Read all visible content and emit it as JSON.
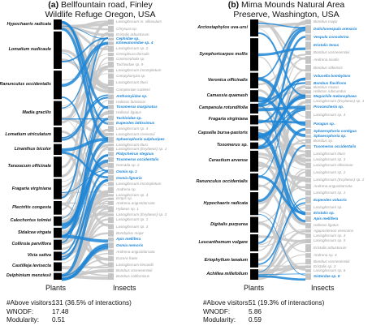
{
  "panel_a": {
    "letter": "(a)",
    "title_line1": "Bellfountain road, Finley",
    "title_line2": "Wildlife Refuge Oregon, USA",
    "plants": [
      "Hypochaeris radicata",
      "Lomatium nudicaule",
      "Ranunculus occidentalis",
      "Madia gracilis",
      "Lomatium utriculatum",
      "Linanthus bicolor",
      "Taraxacum officinale",
      "Fragaria virginiana",
      "Plectritis congesta",
      "Calochortus tolmiei",
      "Sidalcea virgata",
      "Collinsia parviflora",
      "Vicia sativa",
      "Castilleja levisecta",
      "Delphinium menziesii"
    ],
    "insects": [
      {
        "name": "Lasioglossum nr. villosulum",
        "hl": false
      },
      {
        "name": "Chrysura sp.",
        "hl": false
      },
      {
        "name": "Eristalis arbustorum",
        "hl": false
      },
      {
        "name": "Cephidae sp.",
        "hl": true
      },
      {
        "name": "Ichneumonidae sp. 4",
        "hl": true
      },
      {
        "name": "Lasioglossum sp. 2",
        "hl": false
      },
      {
        "name": "Cenopleura dorsalis",
        "hl": false
      },
      {
        "name": "Coniocephala sp.",
        "hl": false
      },
      {
        "name": "Tachinidae sp. 9",
        "hl": false
      },
      {
        "name": "Lasioglossum incompletum",
        "hl": false
      },
      {
        "name": "Campylomyza sp.",
        "hl": false
      },
      {
        "name": "Lasioglossum titusi",
        "hl": false
      },
      {
        "name": "Comptoniae sackeni",
        "hl": false
      },
      {
        "name": "Anthomyiidae sp.",
        "hl": true
      },
      {
        "name": "Halictus farinosus",
        "hl": false
      },
      {
        "name": "Toxomerus marginatus",
        "hl": true
      },
      {
        "name": "Halictus ligatus",
        "hl": false
      },
      {
        "name": "Tachinidae sp.",
        "hl": true
      },
      {
        "name": "Eupeodes lattissimus",
        "hl": true
      },
      {
        "name": "Lasioglossum sp. 4",
        "hl": false
      },
      {
        "name": "Lasioglossum cressonii",
        "hl": false
      },
      {
        "name": "Sphaerophoria sulphuripes",
        "hl": true
      },
      {
        "name": "Lasioglossum titusi",
        "hl": false
      },
      {
        "name": "Lasioglossum (Evylaeus) sp. 1",
        "hl": false
      },
      {
        "name": "Platycheirus stegnus",
        "hl": true
      },
      {
        "name": "Toxomerus occidentalis",
        "hl": true
      },
      {
        "name": "Nomada sp. 2",
        "hl": false
      },
      {
        "name": "Osmia sp. 1",
        "hl": true
      },
      {
        "name": "Osmia lignaria",
        "hl": true
      },
      {
        "name": "Lasioglossum incompletum",
        "hl": false
      },
      {
        "name": "Andrena sp.",
        "hl": false
      },
      {
        "name": "Lasioglossum sp. 4",
        "hl": false
      },
      {
        "name": "Empis sp.",
        "hl": false
      },
      {
        "name": "Andrena angustitarsata",
        "hl": false
      },
      {
        "name": "Hylaeus sp. 1",
        "hl": false
      },
      {
        "name": "Lasioglossum (Evylaeus) sp. 3",
        "hl": false
      },
      {
        "name": "Lasioglossum sp. 1",
        "hl": false
      },
      {
        "name": "Lasioglossum sp. 3",
        "hl": false
      },
      {
        "name": "Bombylius major",
        "hl": false
      },
      {
        "name": "Apis mellifera",
        "hl": true
      },
      {
        "name": "Osmia nemoris",
        "hl": true
      },
      {
        "name": "Andrena angustitarsata",
        "hl": false
      },
      {
        "name": "Eucera frater",
        "hl": false
      },
      {
        "name": "Lasioglossum kincaidii",
        "hl": false
      },
      {
        "name": "Bombus vosnesenskii",
        "hl": false
      },
      {
        "name": "Bombus californicus",
        "hl": false
      }
    ],
    "plants_label": "Plants",
    "insects_label": "Insects",
    "stats": {
      "above_label": "#Above visitors:",
      "above_value": "131 (36.5% of interactions)",
      "wnodf_label": "WNODF:",
      "wnodf_value": "17.48",
      "mod_label": "Modularity:",
      "mod_value": "0.51"
    }
  },
  "panel_b": {
    "letter": "(b)",
    "title_line1": "Mima Mounds Natural Area",
    "title_line2": "Preserve, Washington, USA",
    "plants": [
      "Arctostaphylos uva-ursi",
      "Symphoricarpos mollis",
      "Veronica officinalis",
      "Camassia quamash",
      "Campanula rotundifolia",
      "Fragaria virginiana",
      "Capsella bursa-pastoris",
      "Toxomerus sp.",
      "Cerastium arvense",
      "Ranunculus occidentalis",
      "Hypochaeris radicata",
      "Digitalis purpurea",
      "Leucanthemum vulgare",
      "Eriophyllum lanatum",
      "Achillea millefolium"
    ],
    "insects": [
      {
        "name": "Bombus major",
        "hl": false
      },
      {
        "name": "Dolichovespula arenaria",
        "hl": true
      },
      {
        "name": "Vespula consobrina",
        "hl": true
      },
      {
        "name": "Eristalis tenax",
        "hl": true
      },
      {
        "name": "Bombus vosnesenskii",
        "hl": false
      },
      {
        "name": "Andrena nivalis",
        "hl": false
      },
      {
        "name": "Bombus sitkensis",
        "hl": false
      },
      {
        "name": "Volucella bombylans",
        "hl": true
      },
      {
        "name": "Bombus flavifrons",
        "hl": true
      },
      {
        "name": "Bombus mixtus",
        "hl": false
      },
      {
        "name": "Halictus rubicundus",
        "hl": false
      },
      {
        "name": "Megachile melanophaea",
        "hl": true
      },
      {
        "name": "Lasioglossum (Evylaeus) sp. 1",
        "hl": false
      },
      {
        "name": "Provancheria sp.",
        "hl": true
      },
      {
        "name": "Lasioglossum sp. 4",
        "hl": false
      },
      {
        "name": "Paragus sp.",
        "hl": true
      },
      {
        "name": "Sphaerophoria contigua",
        "hl": true
      },
      {
        "name": "Sphaerophoria sp.",
        "hl": true
      },
      {
        "name": "Bombus sp.",
        "hl": false
      },
      {
        "name": "Toxomerus occidentalis",
        "hl": true
      },
      {
        "name": "Lasioglossum titusi",
        "hl": false
      },
      {
        "name": "Lasioglossum sp. 3",
        "hl": false
      },
      {
        "name": "Lasioglossum ellisianae",
        "hl": false
      },
      {
        "name": "Lasioglossum sp. 2",
        "hl": false
      },
      {
        "name": "Lasioglossum (Evylaeus) sp. 2",
        "hl": false
      },
      {
        "name": "Andrena angustitarsata",
        "hl": false
      },
      {
        "name": "Lasioglossum sp. 1",
        "hl": false
      },
      {
        "name": "Eupeodes volucris",
        "hl": true
      },
      {
        "name": "Lasioglossum sp.",
        "hl": false
      },
      {
        "name": "Eristalis sp.",
        "hl": true
      },
      {
        "name": "Apis mellifera",
        "hl": true
      },
      {
        "name": "Halictus ligatus",
        "hl": false
      },
      {
        "name": "Agapostemon virescens",
        "hl": false
      },
      {
        "name": "Lasioglossum sp. 4",
        "hl": false
      },
      {
        "name": "Lasioglossum sp. 5",
        "hl": false
      },
      {
        "name": "Eristalis arbustorum",
        "hl": false
      },
      {
        "name": "Andrena sp. 4",
        "hl": false
      },
      {
        "name": "Bombus vosnesenskii",
        "hl": false
      },
      {
        "name": "Eristalis sp. 3",
        "hl": false
      },
      {
        "name": "Lasioglossum sp. 6",
        "hl": false
      },
      {
        "name": "Sisterdae sp. 6",
        "hl": true
      }
    ],
    "plants_label": "Plants",
    "insects_label": "Insects",
    "stats": {
      "above_label": "#Above visitors:",
      "above_value": "51 (19.3% of interactions)",
      "wnodf_label": "WNODF:",
      "wnodf_value": "5.86",
      "mod_label": "Modularity:",
      "mod_value": "0.59"
    }
  },
  "colors": {
    "highlight": "#1f86d6",
    "link": "#c8c8c8",
    "plant_bar": "#000000",
    "insect_bar": "#c4c4c4"
  }
}
